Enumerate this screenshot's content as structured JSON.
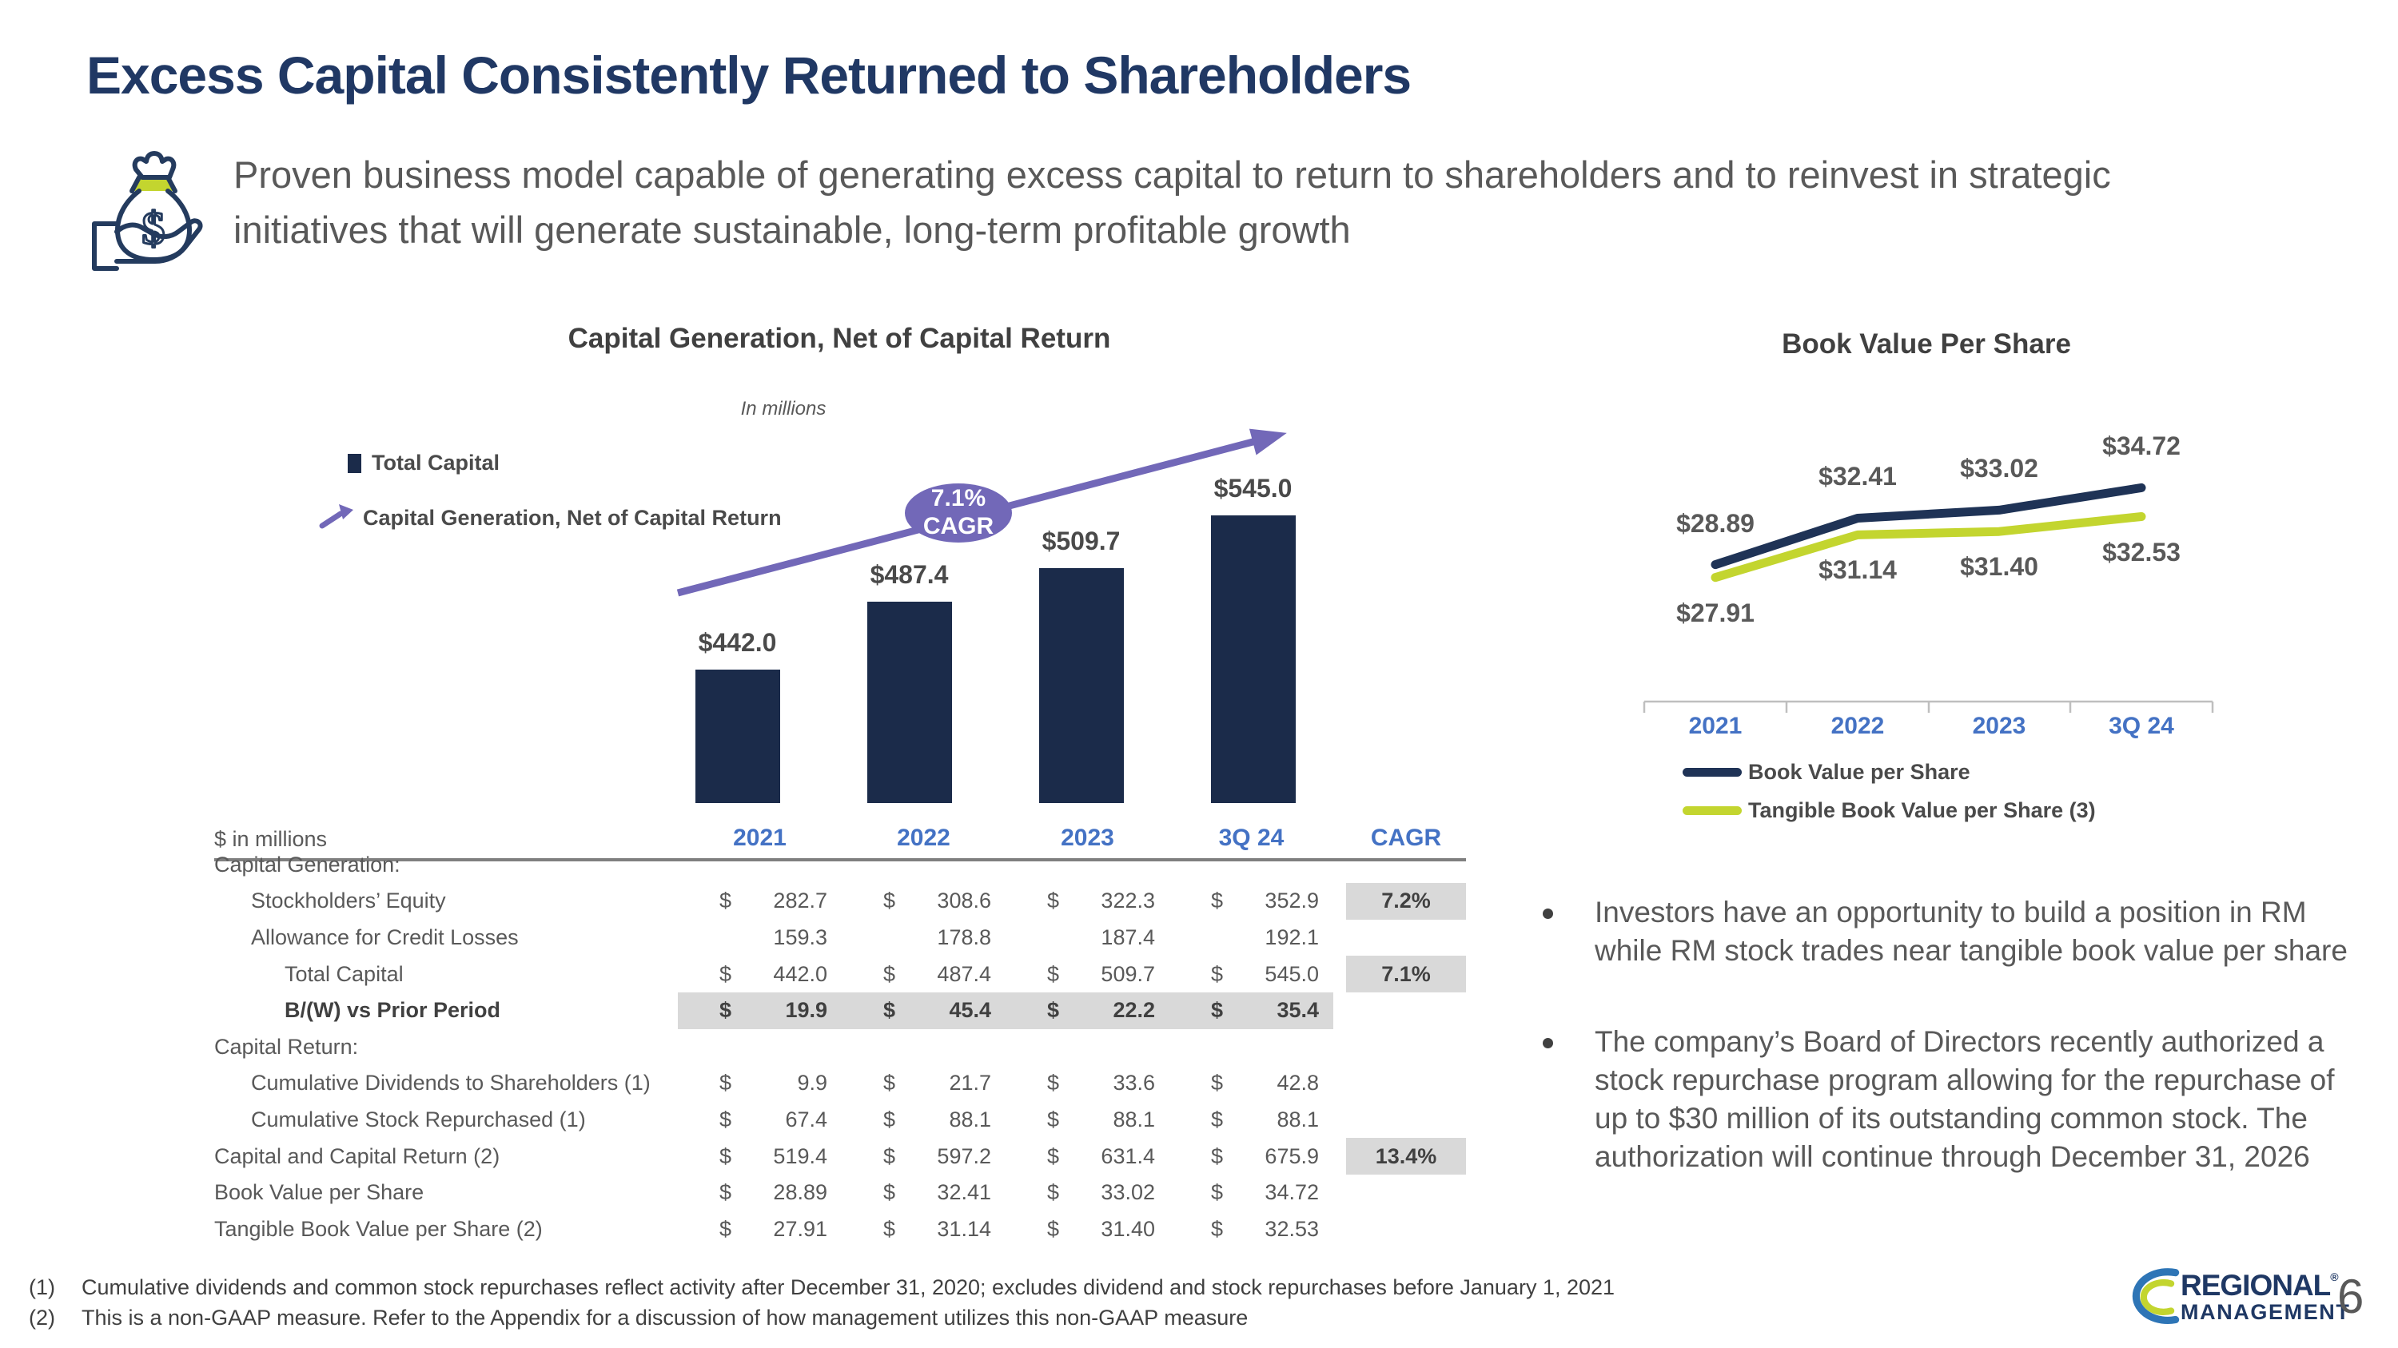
{
  "slide": {
    "title": "Excess Capital Consistently Returned to Shareholders",
    "subtitle": "Proven business model capable of generating excess capital to return to shareholders and to reinvest in strategic initiatives that will generate sustainable, long-term profitable growth",
    "page_number": "6"
  },
  "chart_data": [
    {
      "id": "capital_generation",
      "type": "bar",
      "title": "Capital Generation, Net of Capital Return",
      "units_note": "In millions",
      "categories": [
        "2021",
        "2022",
        "2023",
        "3Q 24"
      ],
      "values": [
        442.0,
        487.4,
        509.7,
        545.0
      ],
      "bar_labels": [
        "$442.0",
        "$487.4",
        "$509.7",
        "$545.0"
      ],
      "ylim": [
        353,
        560
      ],
      "grid": false,
      "bar_color": "#1B2B4A",
      "trend_color": "#7268B8",
      "legend": [
        {
          "label": "Total Capital",
          "swatch": "navy-square"
        },
        {
          "label": "Capital Generation, Net of Capital Return",
          "swatch": "purple-trend-arrow"
        }
      ],
      "annotation": {
        "line1": "7.1%",
        "line2": "CAGR"
      }
    },
    {
      "id": "book_value_per_share",
      "type": "line",
      "title": "Book Value Per Share",
      "categories": [
        "2021",
        "2022",
        "2023",
        "3Q 24"
      ],
      "ylim": [
        18.5,
        38.5
      ],
      "grid": false,
      "legend_position": "bottom-left",
      "series": [
        {
          "name": "Book Value per Share",
          "color": "#1F3356",
          "values": [
            28.89,
            32.41,
            33.02,
            34.72
          ],
          "labels": [
            "$28.89",
            "$32.41",
            "$33.02",
            "$34.72"
          ],
          "label_side": "above"
        },
        {
          "name": "Tangible Book Value per Share (3)",
          "color": "#C3D52F",
          "values": [
            27.91,
            31.14,
            31.4,
            32.53
          ],
          "labels": [
            "$27.91",
            "$31.14",
            "$31.40",
            "$32.53"
          ],
          "label_side": "below"
        }
      ]
    }
  ],
  "table": {
    "units_label": "$ in millions",
    "col_headers": [
      "2021",
      "2022",
      "2023",
      "3Q 24",
      "CAGR"
    ],
    "rows": [
      {
        "label": "Capital Generation:",
        "indent": 0,
        "values": null,
        "cagr": ""
      },
      {
        "label": "Stockholders’ Equity",
        "indent": 1,
        "dollar": true,
        "values": [
          "282.7",
          "308.6",
          "322.3",
          "352.9"
        ],
        "cagr": "7.2%"
      },
      {
        "label": "Allowance for Credit Losses",
        "indent": 1,
        "dollar": false,
        "values": [
          "159.3",
          "178.8",
          "187.4",
          "192.1"
        ],
        "cagr": ""
      },
      {
        "label": "Total Capital",
        "indent": 2,
        "dollar": true,
        "values": [
          "442.0",
          "487.4",
          "509.7",
          "545.0"
        ],
        "cagr": "7.1%"
      },
      {
        "label": "B/(W) vs Prior Period",
        "indent": 2,
        "dollar": true,
        "bold": true,
        "highlight_row": true,
        "values": [
          "19.9",
          "45.4",
          "22.2",
          "35.4"
        ],
        "cagr": ""
      },
      {
        "label": "Capital Return:",
        "indent": 0,
        "values": null,
        "cagr": ""
      },
      {
        "label": "Cumulative Dividends to Shareholders (1)",
        "indent": 1,
        "dollar": true,
        "values": [
          "9.9",
          "21.7",
          "33.6",
          "42.8"
        ],
        "cagr": ""
      },
      {
        "label": "Cumulative Stock Repurchased (1)",
        "indent": 1,
        "dollar": true,
        "values": [
          "67.4",
          "88.1",
          "88.1",
          "88.1"
        ],
        "cagr": ""
      },
      {
        "label": "Capital and Capital Return (2)",
        "indent": 0,
        "dollar": true,
        "values": [
          "519.4",
          "597.2",
          "631.4",
          "675.9"
        ],
        "cagr": "13.4%"
      },
      {
        "label": "Book Value per Share",
        "indent": 0,
        "dollar": true,
        "values": [
          "28.89",
          "32.41",
          "33.02",
          "34.72"
        ],
        "cagr": ""
      },
      {
        "label": "Tangible Book Value per Share (2)",
        "indent": 0,
        "dollar": true,
        "values": [
          "27.91",
          "31.14",
          "31.40",
          "32.53"
        ],
        "cagr": ""
      }
    ]
  },
  "bullets": [
    "Investors have an opportunity to build a position in RM while RM stock trades near tangible book value per share",
    "The company’s Board of Directors recently authorized a stock repurchase program allowing for the repurchase of up to $30 million of its outstanding common stock. The authorization will continue through December 31, 2026"
  ],
  "footnotes": [
    {
      "num": "(1)",
      "text": "Cumulative dividends and common stock repurchases reflect activity after December 31, 2020; excludes dividend and stock repurchases before January 1, 2021"
    },
    {
      "num": "(2)",
      "text": "This is a non-GAAP measure. Refer to the Appendix for a discussion of how management utilizes this non-GAAP measure"
    }
  ],
  "logo": {
    "line1": "REGIONAL",
    "reg_mark": "®",
    "line2": "MANAGEMENT"
  },
  "colors": {
    "title_navy": "#203864",
    "bar_navy": "#1B2B4A",
    "line_navy": "#1F3356",
    "lime": "#C3D52F",
    "purple": "#7268B8",
    "header_blue": "#4472C4",
    "body_gray": "#595959",
    "dark_gray": "#404040",
    "highlight_gray": "#D9D9D9",
    "logo_blue": "#2E75B6"
  }
}
